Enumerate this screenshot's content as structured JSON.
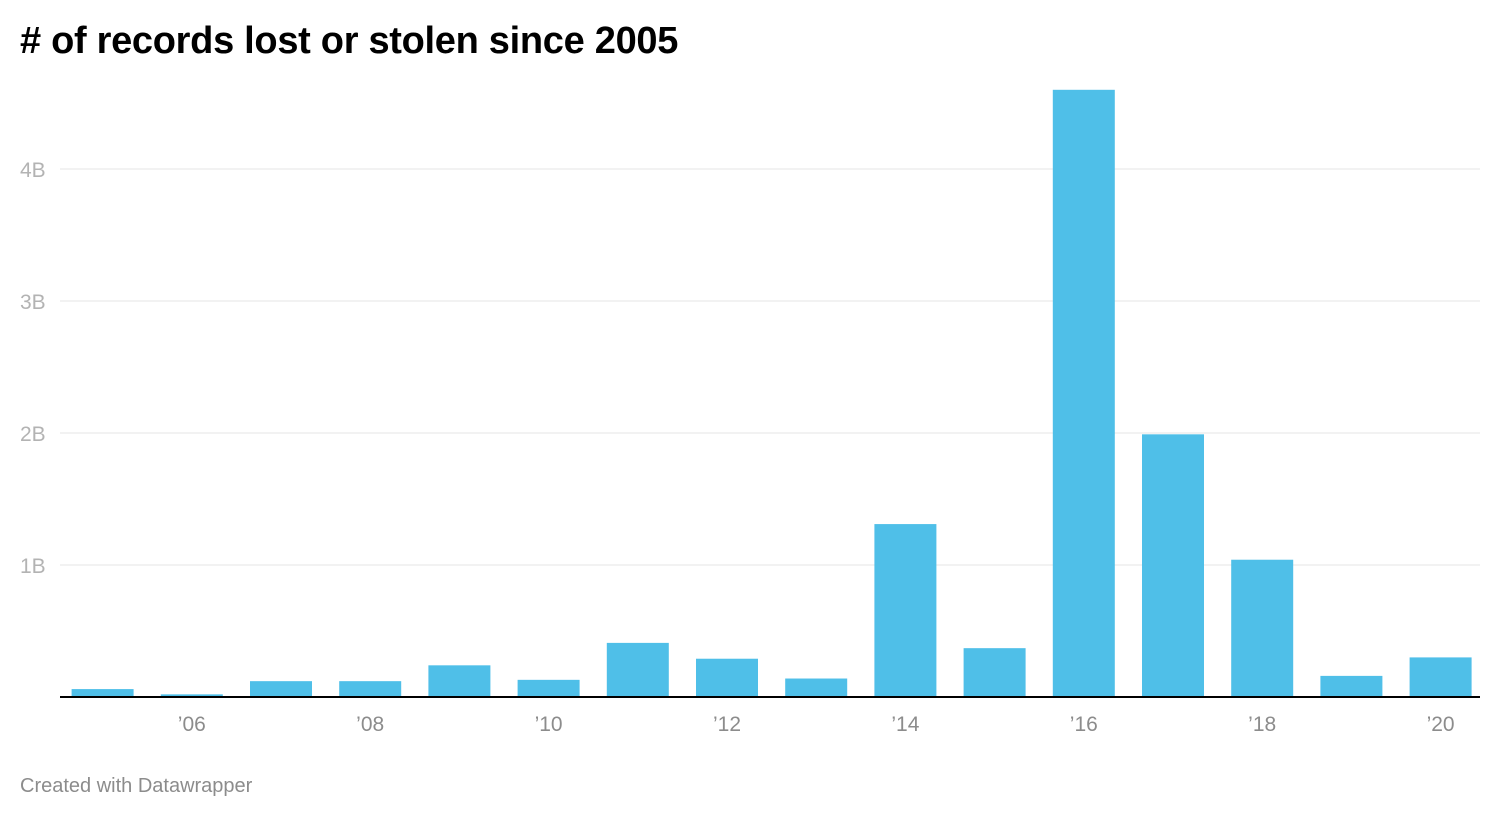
{
  "chart_data": {
    "type": "bar",
    "title": "# of records lost or stolen since 2005",
    "xlabel": "",
    "ylabel": "",
    "categories": [
      "2005",
      "2006",
      "2007",
      "2008",
      "2009",
      "2010",
      "2011",
      "2012",
      "2013",
      "2014",
      "2015",
      "2016",
      "2017",
      "2018",
      "2019",
      "2020"
    ],
    "values": [
      0.06,
      0.02,
      0.12,
      0.12,
      0.24,
      0.13,
      0.41,
      0.29,
      0.14,
      1.31,
      0.37,
      4.6,
      1.99,
      1.04,
      0.16,
      0.3
    ],
    "value_unit": "B",
    "ylim": [
      0,
      4.6
    ],
    "y_ticks": [
      {
        "value": 1,
        "label": "1B"
      },
      {
        "value": 2,
        "label": "2B"
      },
      {
        "value": 3,
        "label": "3B"
      },
      {
        "value": 4,
        "label": "4B"
      }
    ],
    "x_ticks": [
      {
        "category": "2006",
        "label": "’06"
      },
      {
        "category": "2008",
        "label": "’08"
      },
      {
        "category": "2010",
        "label": "’10"
      },
      {
        "category": "2012",
        "label": "’12"
      },
      {
        "category": "2014",
        "label": "’14"
      },
      {
        "category": "2016",
        "label": "’16"
      },
      {
        "category": "2018",
        "label": "’18"
      },
      {
        "category": "2020",
        "label": "’20"
      }
    ],
    "grid": true,
    "legend": "none",
    "bar_color": "#4fbfe8",
    "grid_color": "#e6e6e6",
    "axis_color": "#000000"
  },
  "footer": {
    "credit": "Created with Datawrapper"
  }
}
